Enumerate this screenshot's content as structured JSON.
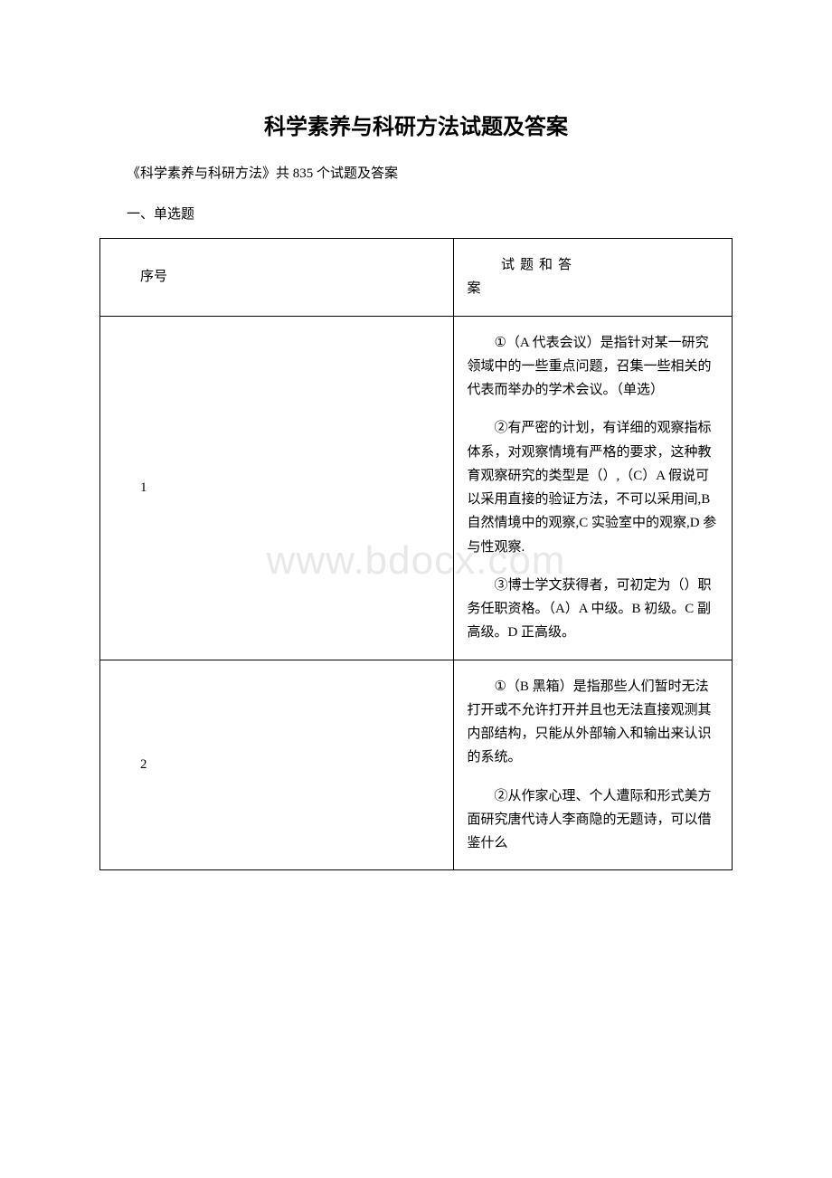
{
  "title": "科学素养与科研方法试题及答案",
  "subtitle": "《科学素养与科研方法》共 835 个试题及答案",
  "section_header": "一、单选题",
  "watermark": "www.bdocx.com",
  "table": {
    "header": {
      "col1": "序号",
      "col2_line1": "试题和答",
      "col2_line2": "案"
    },
    "rows": [
      {
        "seq": "1",
        "answers": [
          "①（A 代表会议）是指针对某一研究领域中的一些重点问题，召集一些相关的代表而举办的学术会议。（单选）",
          "②有严密的计划，有详细的观察指标体系，对观察情境有严格的要求，这种教育观察研究的类型是（）,（C）A 假说可以采用直接的验证方法，不可以采用间,B 自然情境中的观察,C 实验室中的观察,D 参与性观察.",
          "③博士学文获得者，可初定为（）职务任职资格。（A）A 中级。B 初级。C 副高级。D 正高级。"
        ]
      },
      {
        "seq": "2",
        "answers": [
          "①（B 黑箱）是指那些人们暂时无法打开或不允许打开并且也无法直接观测其内部结构，只能从外部输入和输出来认识的系统。",
          "②从作家心理、个人遭际和形式美方面研究唐代诗人李商隐的无题诗，可以借鉴什么"
        ]
      }
    ]
  }
}
